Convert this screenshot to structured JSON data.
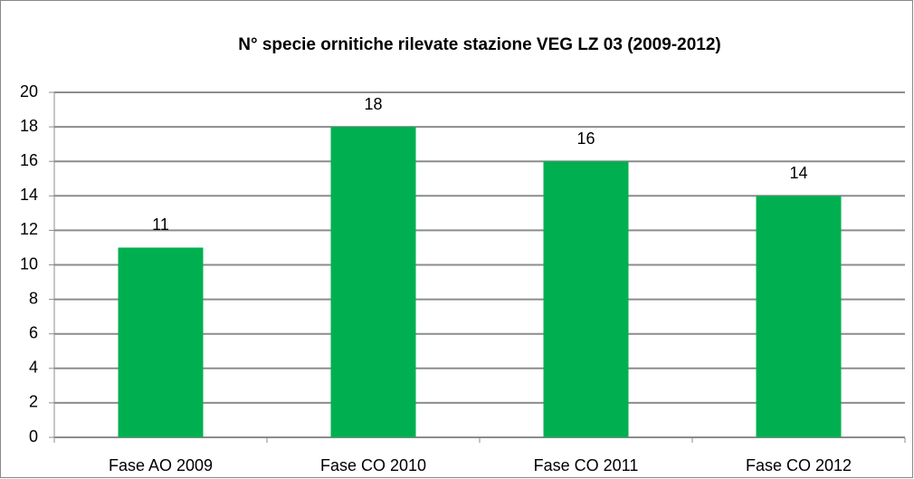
{
  "chart_data": {
    "type": "bar",
    "title": "N° specie ornitiche rilevate stazione VEG LZ 03 (2009-2012)",
    "categories": [
      "Fase AO 2009",
      "Fase CO 2010",
      "Fase CO 2011",
      "Fase CO 2012"
    ],
    "values": [
      11,
      18,
      16,
      14
    ],
    "color": "#00b050",
    "ylim": [
      0,
      20
    ],
    "yticks": [
      0,
      2,
      4,
      6,
      8,
      10,
      12,
      14,
      16,
      18,
      20
    ],
    "grid": true
  }
}
